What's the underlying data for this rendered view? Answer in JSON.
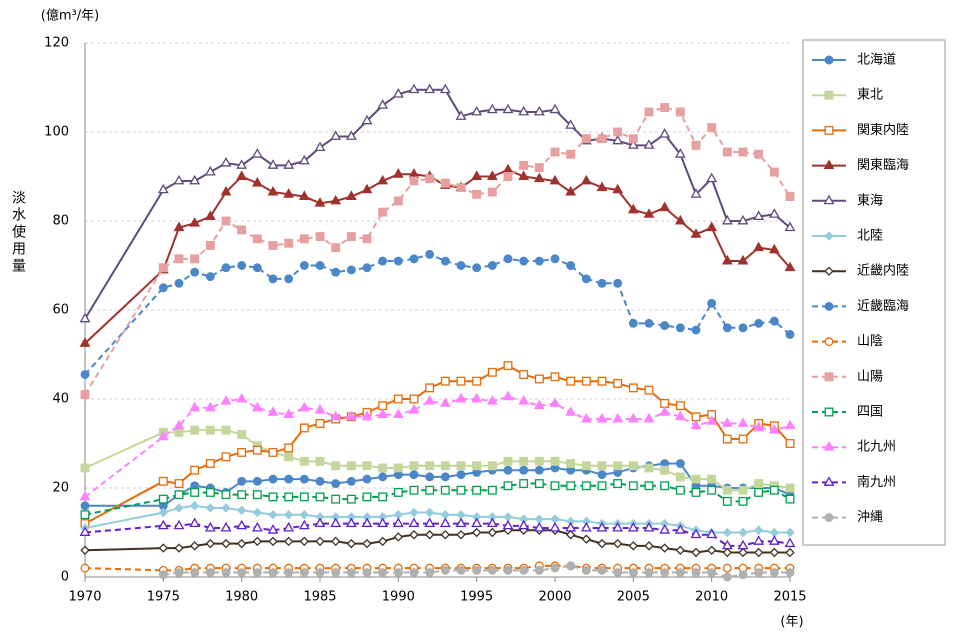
{
  "chart_data": {
    "type": "line",
    "unit_label": "(億m³/年)",
    "y_label": "淡水使用量",
    "x_unit_label": "(年)",
    "x": [
      1970,
      1975,
      1976,
      1977,
      1978,
      1979,
      1980,
      1981,
      1982,
      1983,
      1984,
      1985,
      1986,
      1987,
      1988,
      1989,
      1990,
      1991,
      1992,
      1993,
      1994,
      1995,
      1996,
      1997,
      1998,
      1999,
      2000,
      2001,
      2002,
      2003,
      2004,
      2005,
      2006,
      2007,
      2008,
      2009,
      2010,
      2011,
      2012,
      2013,
      2014,
      2015
    ],
    "xlim": [
      1970,
      2015
    ],
    "xticks": [
      1970,
      1975,
      1980,
      1985,
      1990,
      1995,
      2000,
      2005,
      2010,
      2015
    ],
    "ylim": [
      0,
      120
    ],
    "yticks": [
      0,
      20,
      40,
      60,
      80,
      100,
      120
    ],
    "grid": true,
    "legend": "right",
    "series": [
      {
        "name": "北海道",
        "color": "#4a86c8",
        "marker": "circle",
        "filled": true,
        "dashed": false,
        "values": [
          16,
          16,
          18.5,
          20.5,
          20,
          19,
          21.5,
          21.5,
          22,
          22,
          22,
          21.5,
          21,
          21.5,
          22,
          22.5,
          23,
          23,
          22.5,
          22.5,
          23,
          23.5,
          24,
          24,
          24,
          24,
          24.5,
          24,
          24,
          23,
          23.5,
          24.5,
          25,
          25.5,
          25.5,
          20.5,
          20.5,
          20,
          20,
          20,
          20,
          18.5
        ]
      },
      {
        "name": "東北",
        "color": "#c3d69b",
        "marker": "square",
        "filled": true,
        "dashed": false,
        "values": [
          24.5,
          32.5,
          32.5,
          33,
          33,
          33,
          32,
          29.5,
          28,
          27,
          26,
          26,
          25,
          25,
          25,
          24.5,
          24.5,
          25,
          25,
          25,
          25,
          25,
          25,
          26,
          26,
          26,
          26,
          25.5,
          25,
          25,
          25,
          25,
          24.5,
          24,
          22.5,
          22,
          22,
          19.5,
          19.5,
          21,
          20.5,
          20
        ]
      },
      {
        "name": "関東内陸",
        "color": "#e46c0a",
        "marker": "square",
        "filled": false,
        "dashed": false,
        "values": [
          12,
          21.5,
          21,
          24,
          25.5,
          27,
          28,
          28.5,
          28,
          29,
          33.5,
          34.5,
          35.5,
          36,
          37,
          38.5,
          40,
          40,
          42.5,
          44,
          44,
          44,
          46,
          47.5,
          45.5,
          44.5,
          45,
          44,
          44,
          44,
          43.5,
          42.5,
          42,
          39,
          38.5,
          36,
          36.5,
          31,
          31,
          34.5,
          34,
          30
        ]
      },
      {
        "name": "関東臨海",
        "color": "#a0322d",
        "marker": "triangle",
        "filled": true,
        "dashed": false,
        "values": [
          52.5,
          69,
          78.5,
          79.5,
          81,
          86.5,
          90,
          88.5,
          86.5,
          86,
          85.5,
          84,
          84.5,
          85.5,
          87,
          89,
          90.5,
          90.5,
          90,
          88,
          87.5,
          90,
          90,
          91.5,
          90,
          89.5,
          89,
          86.5,
          89,
          87.5,
          87,
          82.5,
          81.5,
          83,
          80,
          77,
          78.5,
          71,
          71,
          74,
          73.5,
          69.5
        ]
      },
      {
        "name": "東海",
        "color": "#604a7b",
        "marker": "triangle",
        "filled": false,
        "dashed": false,
        "values": [
          58,
          87,
          89,
          89,
          91,
          93,
          92.5,
          95,
          92.5,
          92.5,
          93.5,
          96.5,
          99,
          99,
          102.5,
          106,
          108.5,
          109.5,
          109.5,
          109.5,
          103.5,
          104.5,
          105,
          105,
          104.5,
          104.5,
          105,
          101.5,
          98,
          98.5,
          98,
          97,
          97,
          99.5,
          95,
          86,
          89.5,
          80,
          80,
          81,
          81.5,
          78.5
        ]
      },
      {
        "name": "北陸",
        "color": "#93cddd",
        "marker": "diamond",
        "filled": true,
        "dashed": false,
        "values": [
          11,
          14.5,
          15.5,
          16,
          15.5,
          15.5,
          15,
          14.5,
          14,
          14,
          14,
          13.5,
          13.5,
          13.5,
          13.5,
          13.5,
          14,
          14.5,
          14.5,
          14,
          14,
          13.5,
          13.5,
          13.5,
          13,
          13,
          13,
          12.5,
          12.5,
          12,
          12,
          12,
          12,
          12,
          11.5,
          10.5,
          10,
          10,
          10,
          10.5,
          10,
          10
        ]
      },
      {
        "name": "近畿内陸",
        "color": "#403020",
        "marker": "diamond",
        "filled": false,
        "dashed": false,
        "values": [
          6,
          6.5,
          6.5,
          7,
          7.5,
          7.5,
          7.5,
          8,
          8,
          8,
          8,
          8,
          8,
          7.5,
          7.5,
          8,
          9,
          9.5,
          9.5,
          9.5,
          9.5,
          10,
          10,
          10.5,
          10.5,
          10.5,
          10.5,
          9.5,
          8.5,
          7.5,
          7.5,
          7,
          7,
          6.5,
          6,
          5.5,
          6,
          5.5,
          5.5,
          5.5,
          5.5,
          5.5
        ]
      },
      {
        "name": "近畿臨海",
        "color": "#4a86c8",
        "marker": "circle",
        "filled": true,
        "dashed": true,
        "values": [
          45.5,
          65,
          66,
          68.5,
          67.5,
          69.5,
          70,
          69.5,
          67,
          67,
          70,
          70,
          68.5,
          69,
          69.5,
          71,
          71,
          71.5,
          72.5,
          71,
          70,
          69.5,
          70,
          71.5,
          71,
          71,
          71.5,
          70,
          67,
          66,
          66,
          57,
          57,
          56.5,
          56,
          55.5,
          61.5,
          56,
          56,
          57,
          57.5,
          54.5
        ]
      },
      {
        "name": "山陰",
        "color": "#e46c0a",
        "marker": "circle",
        "filled": false,
        "dashed": true,
        "values": [
          2,
          1.5,
          1.5,
          2,
          2,
          2,
          2,
          2,
          2,
          2,
          2,
          2,
          2,
          2,
          2,
          2,
          2,
          2,
          2,
          2,
          2,
          2,
          2,
          2,
          2,
          2.5,
          2.5,
          2.5,
          2,
          2,
          2,
          2,
          2,
          2,
          2,
          2,
          2,
          2,
          2,
          2,
          2,
          2
        ]
      },
      {
        "name": "山陽",
        "color": "#e6a0a0",
        "marker": "square",
        "filled": true,
        "dashed": true,
        "values": [
          41,
          69.5,
          71.5,
          71.5,
          74.5,
          80,
          78,
          76,
          74.5,
          75,
          76,
          76.5,
          74,
          76.5,
          76,
          82,
          84.5,
          89,
          89.5,
          88.5,
          87.5,
          86,
          86.5,
          90,
          92.5,
          92,
          95.5,
          95,
          98.5,
          98.5,
          100,
          98.5,
          104.5,
          105.5,
          104.5,
          97,
          101,
          95.5,
          95.5,
          95,
          91,
          85.5
        ]
      },
      {
        "name": "四国",
        "color": "#00a050",
        "marker": "square",
        "filled": false,
        "dashed": true,
        "values": [
          14,
          17.5,
          18.5,
          19,
          19,
          18.5,
          18.5,
          18.5,
          18,
          18,
          18,
          18,
          17.5,
          17.5,
          18,
          18,
          19,
          19.5,
          19.5,
          19.5,
          19.5,
          19.5,
          19.5,
          20.5,
          21,
          21,
          20.5,
          20.5,
          20.5,
          20.5,
          21,
          20.5,
          20.5,
          20.5,
          19.5,
          19,
          19.5,
          17,
          17,
          19,
          19.5,
          17.5
        ]
      },
      {
        "name": "北九州",
        "color": "#ff80ff",
        "marker": "triangle",
        "filled": true,
        "dashed": true,
        "values": [
          18,
          31.5,
          34,
          38,
          38,
          39.5,
          40,
          38,
          37,
          36.5,
          38,
          37.5,
          36,
          36,
          36,
          36.5,
          36.5,
          37.5,
          39.5,
          39,
          40,
          40,
          39.5,
          40.5,
          39.5,
          38.5,
          39,
          37,
          35.5,
          35.5,
          35.5,
          35.5,
          35.5,
          37,
          36,
          34,
          35,
          34.5,
          34.5,
          33.5,
          33,
          34
        ]
      },
      {
        "name": "南九州",
        "color": "#6020d0",
        "marker": "triangle",
        "filled": false,
        "dashed": true,
        "values": [
          10,
          11.5,
          11.5,
          12,
          11,
          11,
          11.5,
          11,
          10.5,
          11,
          11.5,
          12,
          12,
          12,
          12,
          12,
          12,
          12,
          12,
          12,
          12,
          12,
          12,
          11.5,
          11.5,
          11,
          11,
          11,
          11,
          11,
          11,
          11,
          11,
          10.5,
          10.5,
          9.5,
          9.5,
          7,
          7,
          8,
          8,
          7.5
        ]
      },
      {
        "name": "沖縄",
        "color": "#b0b0b0",
        "marker": "circle",
        "filled": true,
        "dashed": true,
        "values": [
          null,
          0.5,
          1,
          1,
          1,
          1,
          1,
          1,
          1,
          1,
          1,
          1,
          1,
          1,
          1,
          1,
          1,
          1,
          1,
          1.5,
          1.5,
          1.5,
          1.5,
          1.5,
          1.5,
          1.5,
          2,
          2.5,
          1.5,
          1.5,
          1,
          1,
          1,
          1,
          1,
          1,
          1,
          0,
          0.5,
          1,
          1,
          1
        ]
      }
    ]
  }
}
